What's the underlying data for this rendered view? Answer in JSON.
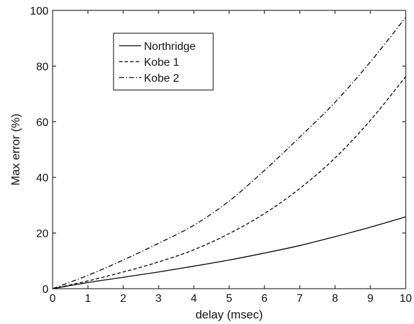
{
  "chart_data": {
    "type": "line",
    "title": "",
    "xlabel": "delay (msec)",
    "ylabel": "Max error (%)",
    "xlim": [
      0,
      10
    ],
    "ylim": [
      0,
      100
    ],
    "xticks": [
      0,
      1,
      2,
      3,
      4,
      5,
      6,
      7,
      8,
      9,
      10
    ],
    "yticks": [
      0,
      20,
      40,
      60,
      80,
      100
    ],
    "grid": false,
    "legend_position": "upper-left",
    "x": [
      0,
      1,
      2,
      3,
      4,
      5,
      6,
      7,
      8,
      9,
      10
    ],
    "series": [
      {
        "name": "Northridge",
        "style": "solid",
        "color": "#000000",
        "values": [
          0,
          2.2,
          4.1,
          6.0,
          8.1,
          10.3,
          12.8,
          15.5,
          18.7,
          22.1,
          25.8
        ]
      },
      {
        "name": "Kobe 1",
        "style": "dashed",
        "color": "#000000",
        "values": [
          0,
          2.8,
          6.0,
          9.6,
          14.0,
          19.8,
          27.0,
          36.0,
          47.0,
          60.5,
          76.2
        ]
      },
      {
        "name": "Kobe 2",
        "style": "dashdot",
        "color": "#000000",
        "values": [
          0,
          4.8,
          10.3,
          16.3,
          22.8,
          31.5,
          42.5,
          54.5,
          67.0,
          81.5,
          97.5
        ]
      }
    ]
  }
}
